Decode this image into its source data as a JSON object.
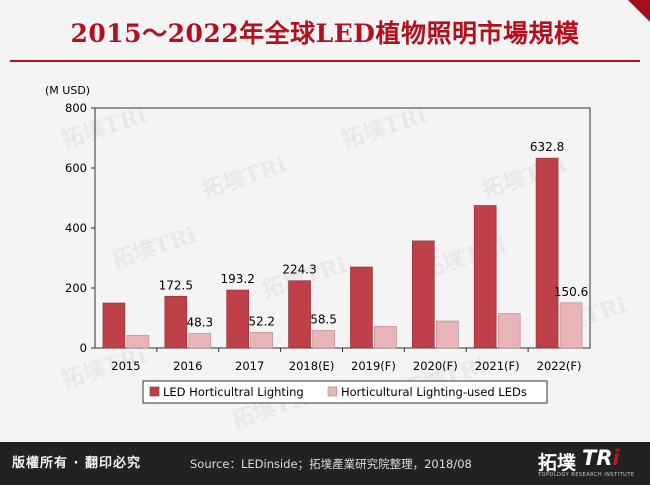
{
  "title": "2015～2022年全球LED植物照明市場規模",
  "footer": {
    "rights": "版權所有 · 翻印必究",
    "source": "Source：LEDinside；拓墣產業研究院整理，2018/08"
  },
  "logo": {
    "name_cn": "拓墣",
    "name_en_main": "TR",
    "name_en_accent": "i",
    "tagline": "TOPOLOGY RESEARCH INSTITUTE"
  },
  "watermark_text": "拓墣TRi",
  "colors": {
    "accent": "#b3101f",
    "series1": "#c0404a",
    "series2": "#e8b4b8",
    "footer_bg": "#222222"
  },
  "chart_data": {
    "type": "bar",
    "title": "2015～2022年全球LED植物照明市場規模",
    "unit_label": "(M USD)",
    "categories": [
      "2015",
      "2016",
      "2017",
      "2018(E)",
      "2019(F)",
      "2020(F)",
      "2021(F)",
      "2022(F)"
    ],
    "ylim": [
      0,
      800
    ],
    "yticks": [
      0,
      200,
      400,
      600,
      800
    ],
    "series": [
      {
        "name": "LED Horticultral Lighting",
        "values": [
          150,
          172.5,
          193.2,
          224.3,
          270,
          357,
          475,
          632.8
        ],
        "labels": [
          "",
          "172.5",
          "193.2",
          "224.3",
          "",
          "",
          "",
          "632.8"
        ]
      },
      {
        "name": "Horticultural Lighting-used LEDs",
        "values": [
          42,
          48.3,
          52.2,
          58.5,
          72,
          90,
          115,
          150.6
        ],
        "labels": [
          "",
          "48.3",
          "52.2",
          "58.5",
          "",
          "",
          "",
          "150.6"
        ]
      }
    ],
    "legend_position": "bottom"
  }
}
